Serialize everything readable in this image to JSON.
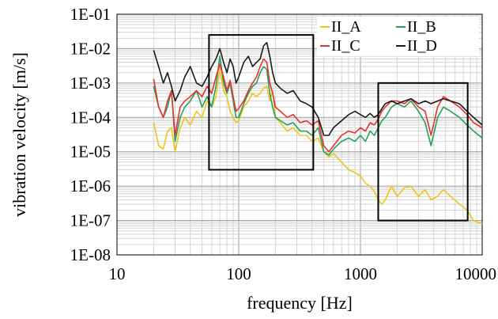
{
  "chart_data": {
    "type": "line",
    "xscale": "log",
    "yscale": "log",
    "xlim": [
      10,
      10000
    ],
    "ylim": [
      1e-08,
      0.1
    ],
    "xlabel": "frequency [Hz]",
    "ylabel": "vibration velocity  [m/s]",
    "x_ticks": [
      {
        "value": 10,
        "label": "10"
      },
      {
        "value": 100,
        "label": "100"
      },
      {
        "value": 1000,
        "label": "1000"
      },
      {
        "value": 10000,
        "label": "10000"
      }
    ],
    "y_ticks": [
      {
        "value": 0.1,
        "label": "1E-01"
      },
      {
        "value": 0.01,
        "label": "1E-02"
      },
      {
        "value": 0.001,
        "label": "1E-03"
      },
      {
        "value": 0.0001,
        "label": "1E-04"
      },
      {
        "value": 1e-05,
        "label": "1E-05"
      },
      {
        "value": 1e-06,
        "label": "1E-06"
      },
      {
        "value": 1e-07,
        "label": "1E-07"
      },
      {
        "value": 1e-08,
        "label": "1E-08"
      }
    ],
    "grid": true,
    "legend": "top-right",
    "series": [
      {
        "name": "II_A",
        "color": "#f0c419",
        "points": [
          [
            20,
            7e-05
          ],
          [
            22,
            1.5e-05
          ],
          [
            24,
            1.2e-05
          ],
          [
            26,
            4e-05
          ],
          [
            28,
            5e-05
          ],
          [
            30,
            1e-05
          ],
          [
            33,
            5e-05
          ],
          [
            36,
            0.0001
          ],
          [
            40,
            6e-05
          ],
          [
            45,
            0.00015
          ],
          [
            50,
            0.0001
          ],
          [
            55,
            0.0003
          ],
          [
            60,
            0.0002
          ],
          [
            65,
            0.0004
          ],
          [
            70,
            0.0025
          ],
          [
            75,
            0.0006
          ],
          [
            80,
            0.0004
          ],
          [
            85,
            0.00015
          ],
          [
            90,
            0.0001
          ],
          [
            95,
            7e-05
          ],
          [
            100,
            8e-05
          ],
          [
            110,
            0.0002
          ],
          [
            120,
            0.0003
          ],
          [
            130,
            0.0005
          ],
          [
            140,
            0.0004
          ],
          [
            150,
            0.0005
          ],
          [
            160,
            0.0007
          ],
          [
            170,
            0.0008
          ],
          [
            180,
            0.0003
          ],
          [
            190,
            0.0006
          ],
          [
            200,
            0.0001
          ],
          [
            220,
            7e-05
          ],
          [
            250,
            4e-05
          ],
          [
            280,
            5e-05
          ],
          [
            320,
            3e-05
          ],
          [
            360,
            3e-05
          ],
          [
            400,
            2e-05
          ],
          [
            450,
            2.5e-05
          ],
          [
            500,
            1e-05
          ],
          [
            550,
            7e-06
          ],
          [
            600,
            9e-06
          ],
          [
            700,
            5e-06
          ],
          [
            800,
            3e-06
          ],
          [
            900,
            2.5e-06
          ],
          [
            1000,
            2e-06
          ],
          [
            1100,
            1.2e-06
          ],
          [
            1200,
            1e-06
          ],
          [
            1300,
            7e-07
          ],
          [
            1400,
            4e-07
          ],
          [
            1500,
            3e-07
          ],
          [
            1600,
            4e-07
          ],
          [
            1800,
            1e-06
          ],
          [
            2000,
            5e-07
          ],
          [
            2300,
            9e-07
          ],
          [
            2600,
            1e-06
          ],
          [
            3000,
            5e-07
          ],
          [
            3400,
            8e-07
          ],
          [
            3800,
            4e-07
          ],
          [
            4300,
            5e-07
          ],
          [
            4800,
            8e-07
          ],
          [
            5500,
            5e-07
          ],
          [
            6500,
            3e-07
          ],
          [
            7500,
            2e-07
          ],
          [
            8500,
            1e-07
          ],
          [
            10000,
            8e-08
          ]
        ]
      },
      {
        "name": "II_B",
        "color": "#27a05a",
        "points": [
          [
            20,
            0.0008
          ],
          [
            22,
            0.0002
          ],
          [
            24,
            0.0001
          ],
          [
            26,
            0.0002
          ],
          [
            28,
            0.0006
          ],
          [
            30,
            2e-05
          ],
          [
            33,
            0.0001
          ],
          [
            36,
            0.0002
          ],
          [
            40,
            0.0003
          ],
          [
            45,
            0.0006
          ],
          [
            50,
            0.0002
          ],
          [
            55,
            0.0004
          ],
          [
            60,
            0.0002
          ],
          [
            65,
            0.0008
          ],
          [
            70,
            0.006
          ],
          [
            75,
            0.001
          ],
          [
            80,
            0.0005
          ],
          [
            85,
            0.001
          ],
          [
            90,
            0.0003
          ],
          [
            95,
            0.0001
          ],
          [
            100,
            0.0001
          ],
          [
            110,
            0.00025
          ],
          [
            120,
            0.0005
          ],
          [
            130,
            0.0008
          ],
          [
            140,
            0.001
          ],
          [
            150,
            0.002
          ],
          [
            160,
            0.003
          ],
          [
            170,
            0.0025
          ],
          [
            180,
            0.0005
          ],
          [
            190,
            0.0002
          ],
          [
            200,
            0.0001
          ],
          [
            220,
            8e-05
          ],
          [
            250,
            6e-05
          ],
          [
            280,
            7e-05
          ],
          [
            320,
            4e-05
          ],
          [
            360,
            4e-05
          ],
          [
            400,
            3e-05
          ],
          [
            450,
            5e-05
          ],
          [
            500,
            1e-05
          ],
          [
            550,
            8e-06
          ],
          [
            600,
            1.2e-05
          ],
          [
            700,
            2e-05
          ],
          [
            800,
            2.5e-05
          ],
          [
            900,
            2e-05
          ],
          [
            1000,
            3e-05
          ],
          [
            1100,
            2e-05
          ],
          [
            1200,
            4e-05
          ],
          [
            1300,
            3e-05
          ],
          [
            1400,
            5e-05
          ],
          [
            1500,
            8e-05
          ],
          [
            1600,
            0.0001
          ],
          [
            1800,
            0.0002
          ],
          [
            2000,
            0.00025
          ],
          [
            2300,
            0.0002
          ],
          [
            2600,
            0.0003
          ],
          [
            3000,
            0.00015
          ],
          [
            3400,
            7e-05
          ],
          [
            3800,
            1.5e-05
          ],
          [
            4300,
            0.0001
          ],
          [
            4800,
            0.0002
          ],
          [
            5500,
            0.00015
          ],
          [
            6500,
            0.0001
          ],
          [
            7500,
            6e-05
          ],
          [
            8500,
            4e-05
          ],
          [
            10000,
            2.5e-05
          ]
        ]
      },
      {
        "name": "II_C",
        "color": "#e83030",
        "points": [
          [
            20,
            0.0013
          ],
          [
            22,
            0.0002
          ],
          [
            24,
            0.0001
          ],
          [
            26,
            0.0003
          ],
          [
            28,
            0.0006
          ],
          [
            30,
            3e-05
          ],
          [
            33,
            0.0002
          ],
          [
            36,
            0.0003
          ],
          [
            40,
            0.0004
          ],
          [
            45,
            0.0006
          ],
          [
            50,
            0.0004
          ],
          [
            55,
            0.0008
          ],
          [
            60,
            0.0005
          ],
          [
            65,
            0.0015
          ],
          [
            70,
            0.0035
          ],
          [
            75,
            0.0015
          ],
          [
            80,
            0.0006
          ],
          [
            85,
            0.0012
          ],
          [
            90,
            0.0004
          ],
          [
            95,
            0.00015
          ],
          [
            100,
            0.00018
          ],
          [
            110,
            0.0003
          ],
          [
            120,
            0.0006
          ],
          [
            130,
            0.001
          ],
          [
            140,
            0.0015
          ],
          [
            150,
            0.003
          ],
          [
            160,
            0.005
          ],
          [
            170,
            0.004
          ],
          [
            180,
            0.001
          ],
          [
            190,
            0.0005
          ],
          [
            200,
            0.0002
          ],
          [
            220,
            0.00015
          ],
          [
            250,
            0.0001
          ],
          [
            280,
            0.00012
          ],
          [
            320,
            7e-05
          ],
          [
            360,
            8e-05
          ],
          [
            400,
            6e-05
          ],
          [
            450,
            8e-05
          ],
          [
            500,
            1.5e-05
          ],
          [
            550,
            1e-05
          ],
          [
            600,
            1.5e-05
          ],
          [
            700,
            3e-05
          ],
          [
            800,
            4e-05
          ],
          [
            900,
            3.5e-05
          ],
          [
            1000,
            5e-05
          ],
          [
            1100,
            4e-05
          ],
          [
            1200,
            7e-05
          ],
          [
            1300,
            6e-05
          ],
          [
            1400,
            9e-05
          ],
          [
            1500,
            0.00015
          ],
          [
            1600,
            0.0002
          ],
          [
            1800,
            0.0003
          ],
          [
            2000,
            0.0003
          ],
          [
            2300,
            0.00025
          ],
          [
            2600,
            0.00035
          ],
          [
            3000,
            0.0002
          ],
          [
            3400,
            0.00015
          ],
          [
            3800,
            3e-05
          ],
          [
            4300,
            0.0002
          ],
          [
            4800,
            0.0004
          ],
          [
            5500,
            0.0003
          ],
          [
            6500,
            0.0002
          ],
          [
            7500,
            0.00012
          ],
          [
            8500,
            7e-05
          ],
          [
            10000,
            5e-05
          ]
        ]
      },
      {
        "name": "II_D",
        "color": "#1a1a1a",
        "points": [
          [
            20,
            0.009
          ],
          [
            22,
            0.003
          ],
          [
            24,
            0.001
          ],
          [
            26,
            0.002
          ],
          [
            28,
            0.0008
          ],
          [
            30,
            0.0003
          ],
          [
            33,
            0.0006
          ],
          [
            36,
            0.0015
          ],
          [
            40,
            0.003
          ],
          [
            45,
            0.001
          ],
          [
            50,
            0.0008
          ],
          [
            55,
            0.0015
          ],
          [
            60,
            0.003
          ],
          [
            65,
            0.005
          ],
          [
            70,
            0.01
          ],
          [
            75,
            0.004
          ],
          [
            80,
            0.002
          ],
          [
            85,
            0.005
          ],
          [
            90,
            0.003
          ],
          [
            95,
            0.001
          ],
          [
            100,
            0.0015
          ],
          [
            110,
            0.004
          ],
          [
            120,
            0.006
          ],
          [
            130,
            0.003
          ],
          [
            140,
            0.004
          ],
          [
            150,
            0.005
          ],
          [
            160,
            0.012
          ],
          [
            170,
            0.015
          ],
          [
            180,
            0.006
          ],
          [
            190,
            0.002
          ],
          [
            200,
            0.001
          ],
          [
            220,
            0.0007
          ],
          [
            250,
            0.0005
          ],
          [
            280,
            0.0006
          ],
          [
            320,
            0.0003
          ],
          [
            360,
            0.00025
          ],
          [
            400,
            0.0002
          ],
          [
            450,
            0.0001
          ],
          [
            500,
            3e-05
          ],
          [
            550,
            3e-05
          ],
          [
            600,
            5e-05
          ],
          [
            700,
            8e-05
          ],
          [
            800,
            0.00012
          ],
          [
            900,
            0.00015
          ],
          [
            1000,
            0.00012
          ],
          [
            1100,
            0.0001
          ],
          [
            1200,
            0.00013
          ],
          [
            1300,
            0.0001
          ],
          [
            1400,
            0.00012
          ],
          [
            1500,
            0.00018
          ],
          [
            1600,
            0.00025
          ],
          [
            1800,
            0.0003
          ],
          [
            2000,
            0.00025
          ],
          [
            2300,
            0.0003
          ],
          [
            2600,
            0.00035
          ],
          [
            3000,
            0.00025
          ],
          [
            3400,
            0.0003
          ],
          [
            3800,
            0.00025
          ],
          [
            4300,
            0.0003
          ],
          [
            4800,
            0.00035
          ],
          [
            5500,
            0.0003
          ],
          [
            6500,
            0.00025
          ],
          [
            7500,
            0.00015
          ],
          [
            8500,
            0.0001
          ],
          [
            10000,
            6e-05
          ]
        ]
      }
    ],
    "annotations": [
      {
        "type": "rectangle",
        "x_range": [
          57,
          410
        ],
        "y_range": [
          3e-06,
          0.025
        ]
      },
      {
        "type": "rectangle",
        "x_range": [
          1400,
          7600
        ],
        "y_range": [
          1e-07,
          0.001
        ]
      }
    ]
  }
}
